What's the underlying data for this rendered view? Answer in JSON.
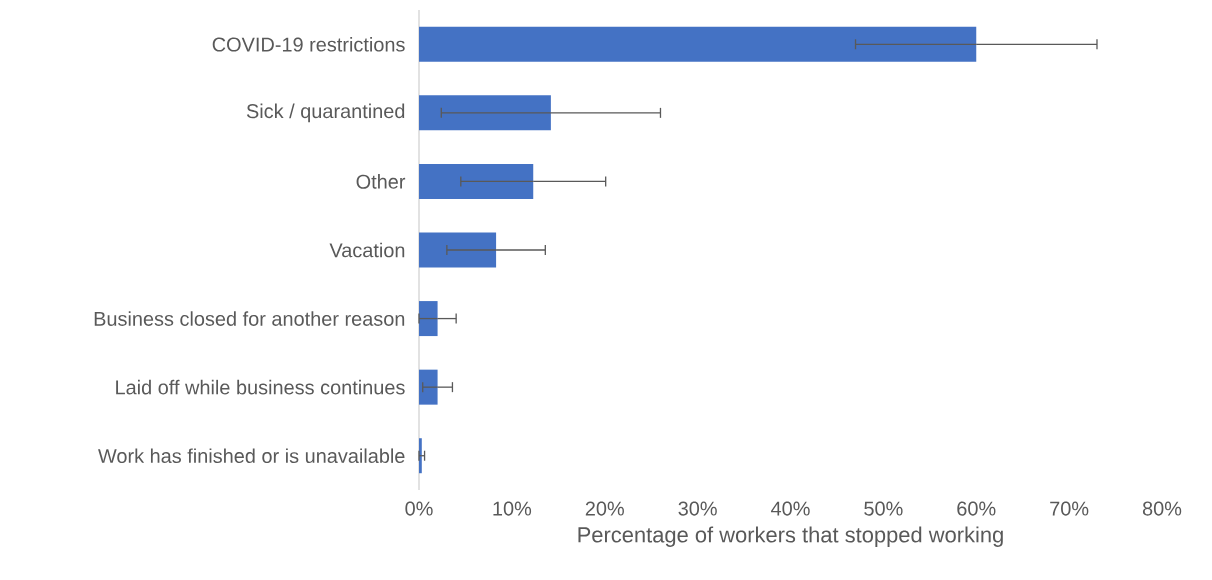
{
  "chart_data": {
    "type": "bar",
    "orientation": "horizontal",
    "categories": [
      "COVID-19 restrictions",
      "Sick / quarantined",
      "Other",
      "Vacation",
      "Business closed for another reason",
      "Laid off while business continues",
      "Work has finished or is unavailable"
    ],
    "values": [
      60,
      14.2,
      12.3,
      8.3,
      2.0,
      2.0,
      0.3
    ],
    "errors": [
      13,
      11.8,
      7.8,
      5.3,
      2.0,
      1.6,
      0.3
    ],
    "color": "#4472c4",
    "xlabel": "Percentage of workers that stopped working",
    "xlim": [
      0,
      80
    ],
    "xticks": [
      {
        "value": 0,
        "label": "0%"
      },
      {
        "value": 10,
        "label": "10%"
      },
      {
        "value": 20,
        "label": "20%"
      },
      {
        "value": 30,
        "label": "30%"
      },
      {
        "value": 40,
        "label": "40%"
      },
      {
        "value": 50,
        "label": "50%"
      },
      {
        "value": 60,
        "label": "60%"
      },
      {
        "value": 70,
        "label": "70%"
      },
      {
        "value": 80,
        "label": "80%"
      }
    ],
    "grid": false
  }
}
